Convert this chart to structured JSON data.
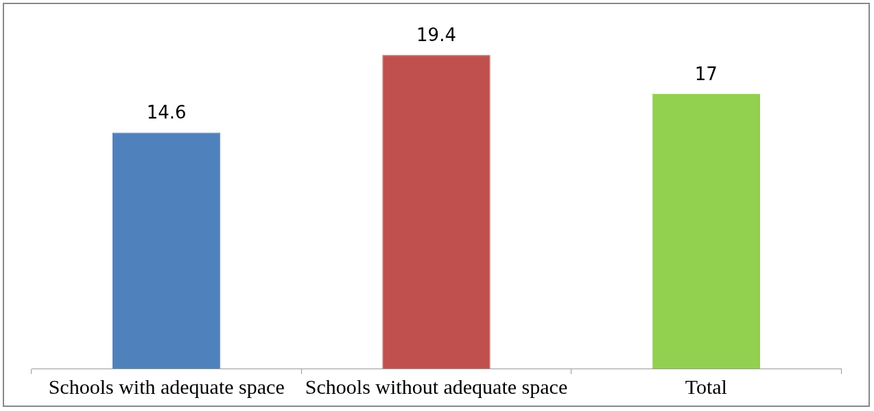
{
  "chart_data": {
    "type": "bar",
    "categories": [
      "Schools with adequate space",
      "Schools without adequate space",
      "Total"
    ],
    "values": [
      14.6,
      19.4,
      17
    ],
    "colors": [
      "#4f81bd",
      "#c0504d",
      "#92d050"
    ],
    "data_labels": true,
    "grid": false,
    "legend": false
  }
}
